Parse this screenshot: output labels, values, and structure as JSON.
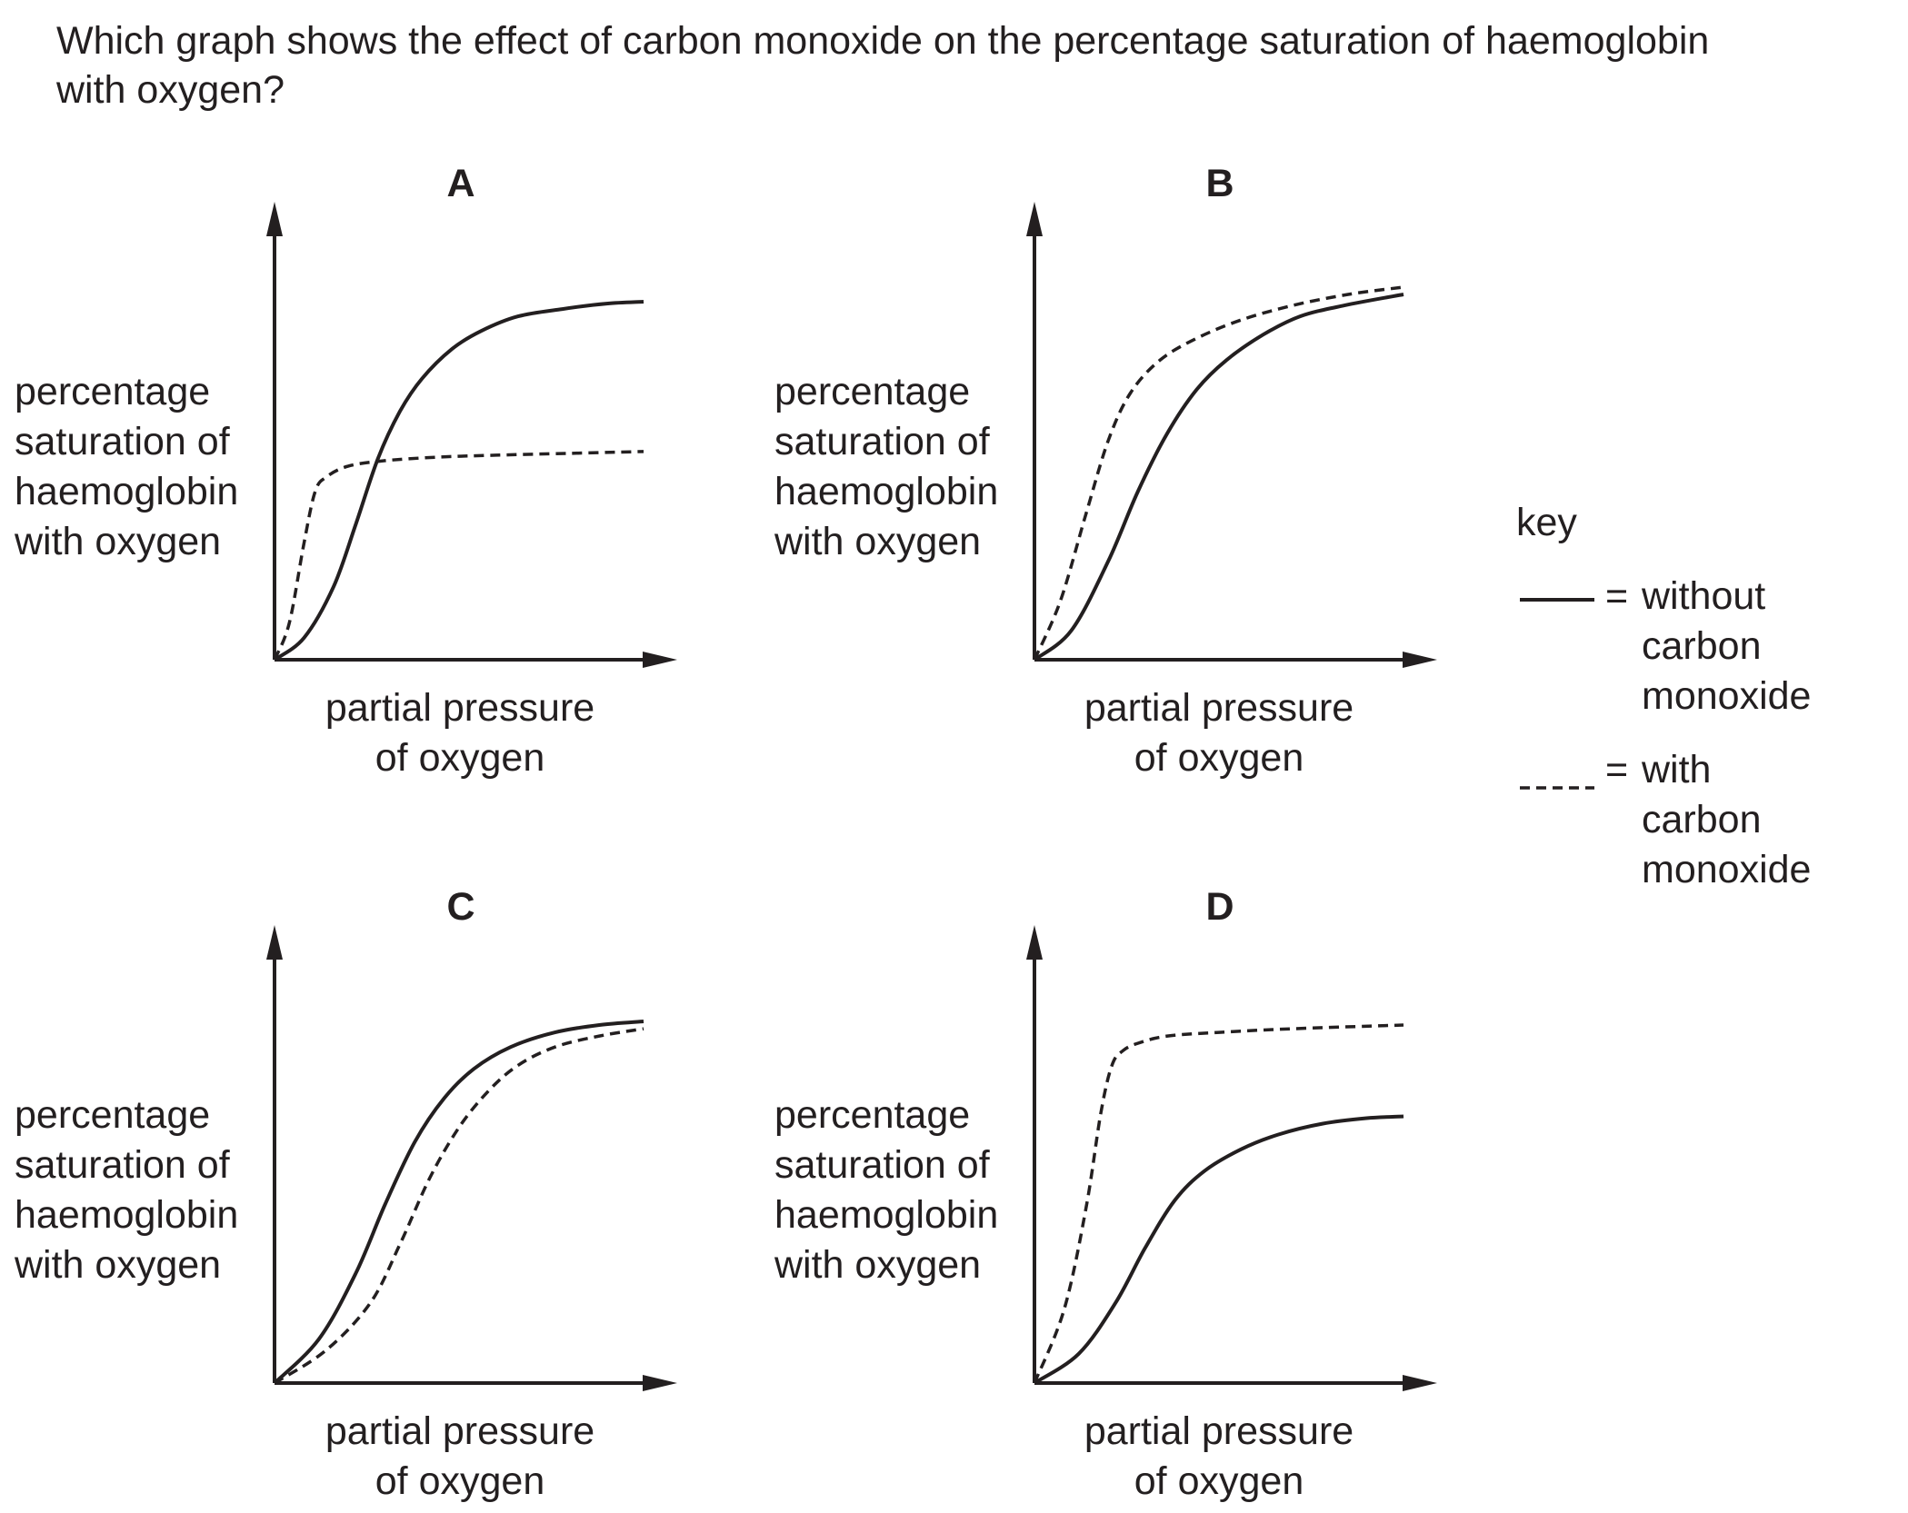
{
  "question": {
    "line1": "Which graph shows the effect of carbon monoxide on the percentage saturation of haemoglobin",
    "line2": "with oxygen?"
  },
  "axis_text": {
    "y_lines": [
      "percentage",
      "saturation of",
      "haemoglobin",
      "with oxygen"
    ],
    "x_lines": [
      "partial pressure",
      "of oxygen"
    ]
  },
  "key": {
    "title": "key",
    "solid": {
      "eq": "=",
      "lines": [
        "without",
        "carbon",
        "monoxide"
      ]
    },
    "dashed": {
      "eq": "=",
      "lines": [
        "with",
        "carbon",
        "monoxide"
      ]
    }
  },
  "colors": {
    "ink": "#231f20",
    "background": "#ffffff"
  },
  "chart_data": [
    {
      "type": "line",
      "title": "A",
      "xlabel": "partial pressure of oxygen",
      "ylabel": "percentage saturation of haemoglobin with oxygen",
      "xlim": [
        0,
        100
      ],
      "ylim": [
        0,
        100
      ],
      "grid": false,
      "series": [
        {
          "name": "without carbon monoxide",
          "style": "solid",
          "x": [
            0,
            8,
            16,
            22,
            28,
            34,
            40,
            48,
            56,
            66,
            78,
            90,
            100
          ],
          "y": [
            0,
            6,
            20,
            37,
            55,
            68,
            77,
            85,
            90,
            94,
            96,
            97.5,
            98
          ]
        },
        {
          "name": "with carbon monoxide",
          "style": "dashed",
          "x": [
            0,
            4,
            8,
            11,
            14,
            20,
            30,
            45,
            60,
            80,
            100
          ],
          "y": [
            0,
            10,
            32,
            46,
            50,
            53,
            54.5,
            55.5,
            56,
            56.5,
            57
          ]
        }
      ]
    },
    {
      "type": "line",
      "title": "B",
      "xlabel": "partial pressure of oxygen",
      "ylabel": "percentage saturation of haemoglobin with oxygen",
      "xlim": [
        0,
        100
      ],
      "ylim": [
        0,
        100
      ],
      "grid": false,
      "series": [
        {
          "name": "without carbon monoxide",
          "style": "solid",
          "x": [
            0,
            10,
            20,
            28,
            36,
            44,
            52,
            62,
            72,
            84,
            100
          ],
          "y": [
            0,
            8,
            27,
            46,
            62,
            74,
            82,
            89,
            94,
            97,
            100
          ]
        },
        {
          "name": "with carbon monoxide",
          "style": "dashed",
          "x": [
            0,
            7,
            14,
            20,
            26,
            34,
            44,
            56,
            70,
            85,
            100
          ],
          "y": [
            0,
            16,
            40,
            60,
            73,
            82,
            88,
            93,
            97,
            100,
            102
          ]
        }
      ]
    },
    {
      "type": "line",
      "title": "C",
      "xlabel": "partial pressure of oxygen",
      "ylabel": "percentage saturation of haemoglobin with oxygen",
      "xlim": [
        0,
        100
      ],
      "ylim": [
        0,
        100
      ],
      "grid": false,
      "series": [
        {
          "name": "without carbon monoxide",
          "style": "solid",
          "x": [
            0,
            12,
            22,
            30,
            38,
            46,
            54,
            64,
            76,
            88,
            100
          ],
          "y": [
            0,
            12,
            30,
            49,
            66,
            78,
            86,
            92,
            96,
            98,
            99
          ]
        },
        {
          "name": "with carbon monoxide",
          "style": "dashed",
          "x": [
            0,
            14,
            26,
            34,
            42,
            50,
            58,
            66,
            76,
            88,
            100
          ],
          "y": [
            0,
            9,
            22,
            38,
            56,
            70,
            80,
            87,
            92,
            95,
            97
          ]
        }
      ]
    },
    {
      "type": "line",
      "title": "D",
      "xlabel": "partial pressure of oxygen",
      "ylabel": "percentage saturation of haemoglobin with oxygen",
      "xlim": [
        0,
        100
      ],
      "ylim": [
        0,
        100
      ],
      "grid": false,
      "series": [
        {
          "name": "without carbon monoxide",
          "style": "solid",
          "x": [
            0,
            12,
            22,
            30,
            38,
            46,
            56,
            66,
            78,
            90,
            100
          ],
          "y": [
            0,
            8,
            22,
            37,
            50,
            58,
            64,
            68,
            71,
            72.5,
            73
          ]
        },
        {
          "name": "with carbon monoxide",
          "style": "dashed",
          "x": [
            0,
            8,
            14,
            18,
            21,
            24,
            28,
            36,
            50,
            70,
            100
          ],
          "y": [
            0,
            20,
            48,
            74,
            87,
            91,
            93,
            95,
            96,
            97,
            98
          ]
        }
      ]
    }
  ]
}
